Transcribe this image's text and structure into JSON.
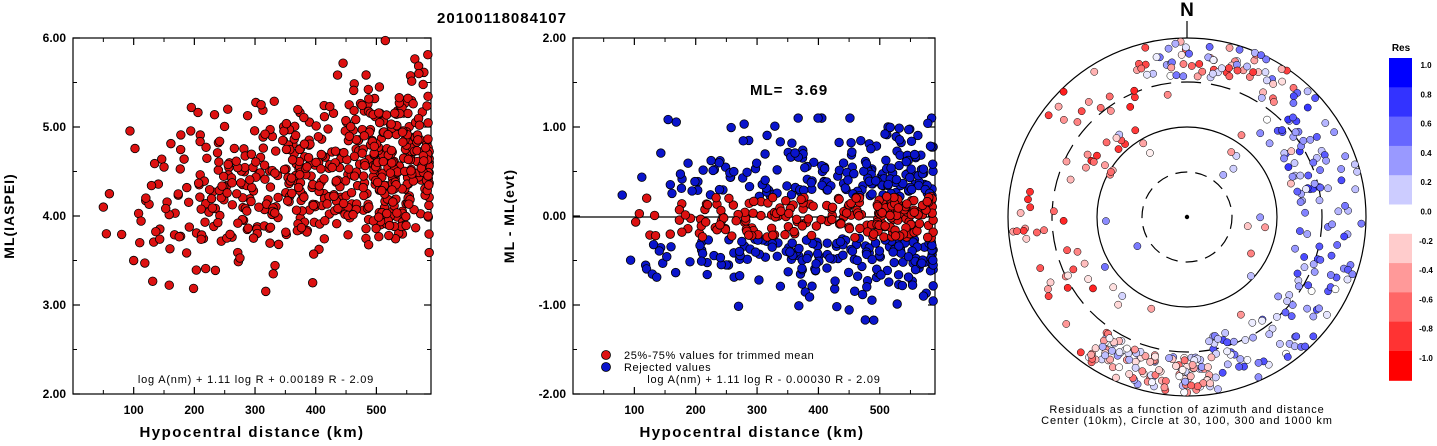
{
  "event_id": "20100118084107",
  "chart_data": [
    {
      "type": "scatter",
      "xlabel": "Hypocentral distance (km)",
      "ylabel": "ML(IASPEI)",
      "xlim": [
        0,
        590
      ],
      "ylim": [
        2.0,
        6.0
      ],
      "x_ticks": [
        "100",
        "200",
        "300",
        "400",
        "500"
      ],
      "x_tick_values": [
        100,
        200,
        300,
        400,
        500
      ],
      "y_ticks": [
        "2.00",
        "3.00",
        "4.00",
        "5.00",
        "6.00"
      ],
      "y_tick_values": [
        2,
        3,
        4,
        5,
        6
      ],
      "formula": "log A(nm) + 1.11 log R + 0.00189 R - 2.09",
      "marker_color": "#dd1111",
      "trend": {
        "x0": 50,
        "y0": 3.95,
        "x1": 590,
        "y1": 4.75,
        "spread": 0.42
      },
      "n_points": 620,
      "sample_points": [
        [
          50,
          4.1
        ],
        [
          55,
          3.8
        ],
        [
          60,
          4.25
        ],
        [
          100,
          3.5
        ],
        [
          110,
          3.7
        ],
        [
          150,
          4.55
        ],
        [
          195,
          5.22
        ],
        [
          255,
          5.2
        ],
        [
          310,
          5.25
        ],
        [
          330,
          3.35
        ],
        [
          395,
          3.25
        ],
        [
          505,
          5.45
        ],
        [
          570,
          5.6
        ],
        [
          585,
          4.0
        ]
      ]
    },
    {
      "type": "scatter",
      "xlabel": "Hypocentral distance (km)",
      "ylabel": "ML - ML(evt)",
      "xlim": [
        0,
        590
      ],
      "ylim": [
        -2.0,
        2.0
      ],
      "x_ticks": [
        "100",
        "200",
        "300",
        "400",
        "500"
      ],
      "x_tick_values": [
        100,
        200,
        300,
        400,
        500
      ],
      "y_ticks": [
        "-2.00",
        "-1.00",
        "0.00",
        "1.00",
        "2.00"
      ],
      "y_tick_values": [
        -2,
        -1,
        0,
        1,
        2
      ],
      "reference_line": 0.0,
      "ml_label": "ML=",
      "ml_value": "3.69",
      "formula": "log A(nm) + 1.11 log R - 0.00030 R - 2.09",
      "series": [
        {
          "name": "25%-75% values for trimmed mean",
          "color": "#dd1111",
          "range": [
            -0.25,
            0.22
          ]
        },
        {
          "name": "Rejected values",
          "color": "#0a14cc",
          "range": [
            -1.3,
            1.1
          ]
        }
      ],
      "n_points": 620
    },
    {
      "type": "polar-scatter",
      "north_label": "N",
      "rings_km": [
        30,
        100,
        300,
        1000
      ],
      "center_km": 10,
      "caption_line1": "Residuals as a function of azimuth and distance",
      "caption_line2": "Center (10km), Circle at 30, 100, 300 and 1000 km",
      "colorbar_title": "Res",
      "colorbar_ticks": [
        "1.0",
        "0.8",
        "0.6",
        "0.4",
        "0.2",
        "0.0",
        "-0.2",
        "-0.4",
        "-0.6",
        "-0.8",
        "-1.0"
      ],
      "colorbar_values": [
        1.0,
        0.8,
        0.6,
        0.4,
        0.2,
        0.0,
        -0.2,
        -0.4,
        -0.6,
        -0.8,
        -1.0
      ],
      "positive_color": "#0000ff",
      "negative_color": "#ff0000"
    }
  ]
}
